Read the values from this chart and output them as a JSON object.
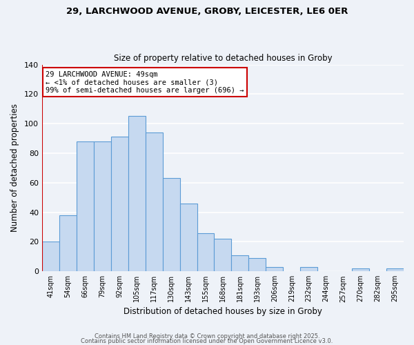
{
  "title1": "29, LARCHWOOD AVENUE, GROBY, LEICESTER, LE6 0ER",
  "title2": "Size of property relative to detached houses in Groby",
  "xlabel": "Distribution of detached houses by size in Groby",
  "ylabel": "Number of detached properties",
  "bar_labels": [
    "41sqm",
    "54sqm",
    "66sqm",
    "79sqm",
    "92sqm",
    "105sqm",
    "117sqm",
    "130sqm",
    "143sqm",
    "155sqm",
    "168sqm",
    "181sqm",
    "193sqm",
    "206sqm",
    "219sqm",
    "232sqm",
    "244sqm",
    "257sqm",
    "270sqm",
    "282sqm",
    "295sqm"
  ],
  "bar_values": [
    20,
    38,
    88,
    88,
    91,
    105,
    94,
    63,
    46,
    26,
    22,
    11,
    9,
    3,
    0,
    3,
    0,
    0,
    2,
    0,
    2
  ],
  "bar_color": "#c6d9f0",
  "bar_edge_color": "#5b9bd5",
  "highlight_line_color": "#cc0000",
  "annotation_text": "29 LARCHWOOD AVENUE: 49sqm\n← <1% of detached houses are smaller (3)\n99% of semi-detached houses are larger (696) →",
  "annotation_box_color": "#ffffff",
  "annotation_box_edge_color": "#cc0000",
  "ylim": [
    0,
    140
  ],
  "yticks": [
    0,
    20,
    40,
    60,
    80,
    100,
    120,
    140
  ],
  "footer1": "Contains HM Land Registry data © Crown copyright and database right 2025.",
  "footer2": "Contains public sector information licensed under the Open Government Licence v3.0.",
  "bg_color": "#eef2f8",
  "grid_color": "#ffffff"
}
